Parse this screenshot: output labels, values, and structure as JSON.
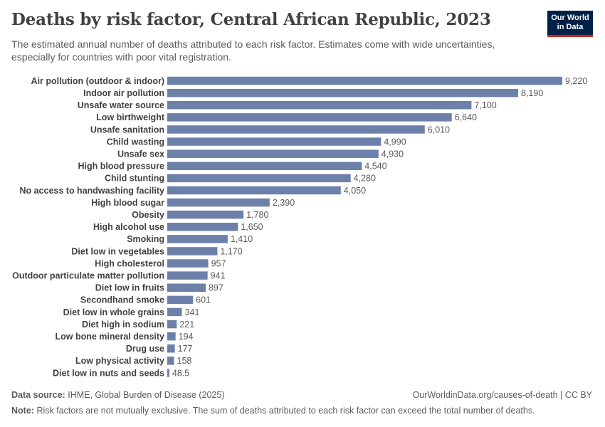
{
  "header": {
    "title": "Deaths by risk factor, Central African Republic, 2023",
    "subtitle": "The estimated annual number of deaths attributed to each risk factor. Estimates come with wide uncertainties, especially for countries with poor vital registration.",
    "logo_line1": "Our World",
    "logo_line2": "in Data"
  },
  "footer": {
    "source_label": "Data source:",
    "source_text": "IHME, Global Burden of Disease (2025)",
    "url": "OurWorldinData.org/causes-of-death | CC BY",
    "note_label": "Note:",
    "note_text": "Risk factors are not mutually exclusive. The sum of deaths attributed to each risk factor can exceed the total number of deaths."
  },
  "colors": {
    "bar": "#6d80aa",
    "label": "#414141",
    "value": "#5b5b5b"
  },
  "chart_data": {
    "type": "bar",
    "orientation": "horizontal",
    "categories": [
      "Air pollution (outdoor & indoor)",
      "Indoor air pollution",
      "Unsafe water source",
      "Low birthweight",
      "Unsafe sanitation",
      "Child wasting",
      "Unsafe sex",
      "High blood pressure",
      "Child stunting",
      "No access to handwashing facility",
      "High blood sugar",
      "Obesity",
      "High alcohol use",
      "Smoking",
      "Diet low in vegetables",
      "High cholesterol",
      "Outdoor particulate matter pollution",
      "Diet low in fruits",
      "Secondhand smoke",
      "Diet low in whole grains",
      "Diet high in sodium",
      "Low bone mineral density",
      "Drug use",
      "Low physical activity",
      "Diet low in nuts and seeds"
    ],
    "values": [
      9220,
      8190,
      7100,
      6640,
      6010,
      4990,
      4930,
      4540,
      4280,
      4050,
      2390,
      1780,
      1650,
      1410,
      1170,
      957,
      941,
      897,
      601,
      341,
      221,
      194,
      177,
      158,
      48.5
    ],
    "value_labels": [
      "9,220",
      "8,190",
      "7,100",
      "6,640",
      "6,010",
      "4,990",
      "4,930",
      "4,540",
      "4,280",
      "4,050",
      "2,390",
      "1,780",
      "1,650",
      "1,410",
      "1,170",
      "957",
      "941",
      "897",
      "601",
      "341",
      "221",
      "194",
      "177",
      "158",
      "48.5"
    ],
    "xlim": [
      0,
      9220
    ],
    "grid": false,
    "legend": "none"
  }
}
